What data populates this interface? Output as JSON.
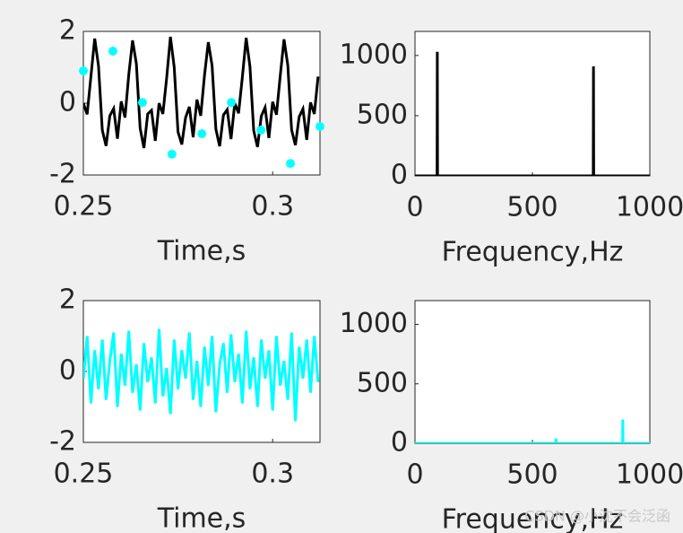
{
  "chart_data": [
    {
      "type": "line",
      "xlabel": "Time,s",
      "xlim": [
        0.25,
        0.3125
      ],
      "xticks": [
        0.25,
        0.3
      ],
      "ylim": [
        -2,
        2
      ],
      "yticks": [
        -2,
        0,
        2
      ],
      "series": [
        {
          "color": "#000000",
          "marker": "none",
          "x": [
            0.25,
            0.251,
            0.252,
            0.253,
            0.254,
            0.255,
            0.256,
            0.257,
            0.258,
            0.259,
            0.26,
            0.261,
            0.262,
            0.263,
            0.264,
            0.265,
            0.266,
            0.267,
            0.268,
            0.269,
            0.27,
            0.271,
            0.272,
            0.273,
            0.274,
            0.275,
            0.276,
            0.277,
            0.278,
            0.279,
            0.28,
            0.281,
            0.282,
            0.283,
            0.284,
            0.285,
            0.286,
            0.287,
            0.288,
            0.289,
            0.29,
            0.291,
            0.292,
            0.293,
            0.294,
            0.295,
            0.296,
            0.297,
            0.298,
            0.299,
            0.3,
            0.301,
            0.302,
            0.303,
            0.304,
            0.305,
            0.306,
            0.307,
            0.308,
            0.309,
            0.31,
            0.311,
            0.312
          ],
          "values": [
            0,
            -0.31,
            0.75,
            1.8,
            1.04,
            -0.75,
            -1.19,
            -0.35,
            -0.15,
            -0.99,
            0.05,
            -0.4,
            0.8,
            1.75,
            1.1,
            -0.7,
            -1.25,
            -0.3,
            -0.2,
            -1.05,
            0,
            -0.3,
            0.7,
            1.85,
            1.0,
            -0.8,
            -1.15,
            -0.4,
            -0.1,
            -0.95,
            0.1,
            -0.35,
            0.78,
            1.7,
            1.05,
            -0.72,
            -1.2,
            -0.33,
            -0.18,
            -1.0,
            0,
            -0.28,
            0.73,
            1.82,
            1.02,
            -0.77,
            -1.22,
            -0.36,
            -0.12,
            -0.97,
            0.04,
            -0.32,
            0.76,
            1.78,
            1.06,
            -0.74,
            -1.17,
            -0.38,
            -0.16,
            -1.02,
            0.02,
            -0.3,
            0.74
          ]
        },
        {
          "color": "#00ffff",
          "marker": "*",
          "x": [
            0.25,
            0.2578,
            0.2656,
            0.2734,
            0.2813,
            0.2891,
            0.2969,
            0.3047,
            0.3125
          ],
          "values": [
            0.9,
            1.45,
            0.02,
            -1.42,
            -0.85,
            0.02,
            -0.75,
            -1.68,
            -0.65
          ]
        }
      ]
    },
    {
      "type": "line",
      "xlabel": "Frequency,Hz",
      "xlim": [
        0,
        1000
      ],
      "xticks": [
        0,
        500,
        1000
      ],
      "ylim": [
        0,
        1200
      ],
      "yticks": [
        0,
        500,
        1000
      ],
      "series": [
        {
          "color": "#000000",
          "marker": "none",
          "x": [
            0,
            94,
            95,
            96,
            759,
            760,
            761,
            1000
          ],
          "values": [
            0,
            0,
            1030,
            0,
            0,
            910,
            0,
            0
          ]
        }
      ]
    },
    {
      "type": "line",
      "xlabel": "Time,s",
      "xlim": [
        0.25,
        0.3125
      ],
      "xticks": [
        0.25,
        0.3
      ],
      "ylim": [
        -2,
        2
      ],
      "yticks": [
        -2,
        0,
        2
      ],
      "series": [
        {
          "color": "#00ffff",
          "marker": "none",
          "x": [
            0.25,
            0.251,
            0.252,
            0.253,
            0.254,
            0.255,
            0.256,
            0.257,
            0.258,
            0.259,
            0.26,
            0.261,
            0.262,
            0.263,
            0.264,
            0.265,
            0.266,
            0.267,
            0.268,
            0.269,
            0.27,
            0.271,
            0.272,
            0.273,
            0.274,
            0.275,
            0.276,
            0.277,
            0.278,
            0.279,
            0.28,
            0.281,
            0.282,
            0.283,
            0.284,
            0.285,
            0.286,
            0.287,
            0.288,
            0.289,
            0.29,
            0.291,
            0.292,
            0.293,
            0.294,
            0.295,
            0.296,
            0.297,
            0.298,
            0.299,
            0.3,
            0.301,
            0.302,
            0.303,
            0.304,
            0.305,
            0.306,
            0.307,
            0.308,
            0.309,
            0.31,
            0.311,
            0.312
          ],
          "values": [
            -0.2,
            1.0,
            -0.9,
            0.6,
            -0.5,
            0.9,
            -0.8,
            0.3,
            1.1,
            -1.0,
            0.5,
            -0.4,
            1.15,
            -0.6,
            0.2,
            -1.1,
            0.8,
            -0.3,
            0.4,
            -0.9,
            1.2,
            -0.7,
            0.1,
            -1.2,
            0.9,
            -0.5,
            0.6,
            -0.2,
            1.1,
            -0.8,
            0.3,
            -1.0,
            0.7,
            -0.4,
            1.0,
            -1.15,
            0.2,
            0.8,
            -0.6,
            1.05,
            -0.3,
            0.5,
            -0.9,
            1.15,
            -0.5,
            0.4,
            -1.0,
            0.9,
            -0.2,
            0.6,
            -1.1,
            1.0,
            -0.4,
            0.3,
            -0.8,
            1.1,
            -1.4,
            0.7,
            -0.2,
            0.9,
            -0.6,
            1.0,
            -0.3
          ]
        }
      ]
    },
    {
      "type": "line",
      "xlabel": "Frequency,Hz",
      "xlim": [
        0,
        1000
      ],
      "xticks": [
        0,
        500,
        1000
      ],
      "ylim": [
        0,
        1200
      ],
      "yticks": [
        0,
        500,
        1000
      ],
      "series": [
        {
          "color": "#00ffff",
          "marker": "none",
          "x": [
            0,
            599,
            600,
            601,
            884,
            885,
            886,
            1000
          ],
          "values": [
            0,
            0,
            40,
            0,
            0,
            200,
            0,
            0
          ]
        }
      ]
    }
  ],
  "watermark": "CSDN @小沈不会泛函"
}
